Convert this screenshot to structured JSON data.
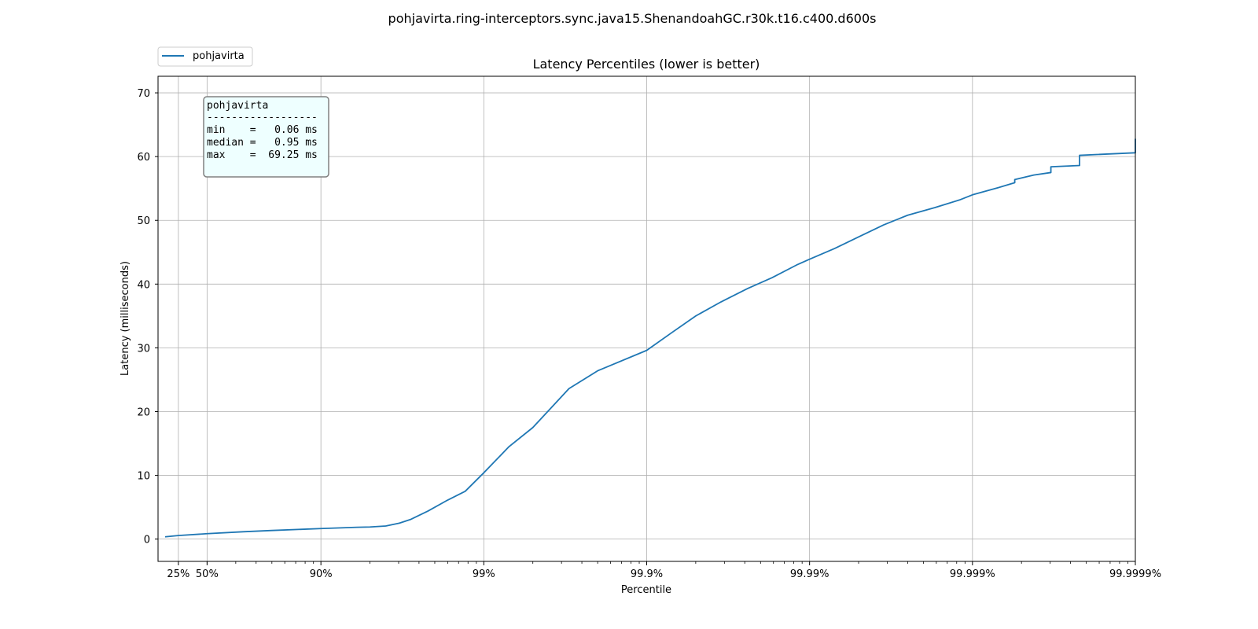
{
  "chart_data": {
    "type": "line",
    "suptitle": "pohjavirta.ring-interceptors.sync.java15.ShenandoahGC.r30k.t16.c400.d600s",
    "title": "Latency Percentiles (lower is better)",
    "xlabel": "Percentile",
    "ylabel": "Latency (milliseconds)",
    "xscale": "log of 1/(1-p)",
    "xlim_percentile": [
      0,
      99.9999
    ],
    "ylim": [
      -3.5,
      72.6
    ],
    "yticks": [
      0,
      10,
      20,
      30,
      40,
      50,
      60,
      70
    ],
    "xticks": [
      {
        "percentile": 25,
        "label": "25%"
      },
      {
        "percentile": 50,
        "label": "50%"
      },
      {
        "percentile": 90,
        "label": "90%"
      },
      {
        "percentile": 99,
        "label": "99%"
      },
      {
        "percentile": 99.9,
        "label": "99.9%"
      },
      {
        "percentile": 99.99,
        "label": "99.99%"
      },
      {
        "percentile": 99.999,
        "label": "99.999%"
      },
      {
        "percentile": 99.9999,
        "label": "99.9999%"
      }
    ],
    "grid": true,
    "legend_position": "top-left, above plot",
    "series": [
      {
        "name": "pohjavirta",
        "color": "#1f77b4",
        "points": [
          [
            9.5,
            0.35
          ],
          [
            25,
            0.55
          ],
          [
            50,
            0.85
          ],
          [
            70,
            1.15
          ],
          [
            80,
            1.35
          ],
          [
            90,
            1.65
          ],
          [
            94,
            1.85
          ],
          [
            95,
            1.9
          ],
          [
            96,
            2.05
          ],
          [
            96.7,
            2.5
          ],
          [
            97.2,
            3.1
          ],
          [
            97.8,
            4.4
          ],
          [
            98.3,
            6.0
          ],
          [
            98.7,
            7.5
          ],
          [
            99.0,
            10.4
          ],
          [
            99.3,
            14.5
          ],
          [
            99.5,
            17.5
          ],
          [
            99.7,
            23.6
          ],
          [
            99.8,
            26.4
          ],
          [
            99.9,
            29.6
          ],
          [
            99.93,
            32.4
          ],
          [
            99.95,
            35.0
          ],
          [
            99.965,
            37.2
          ],
          [
            99.976,
            39.3
          ],
          [
            99.983,
            41.0
          ],
          [
            99.988,
            43.0
          ],
          [
            99.99,
            43.9
          ],
          [
            99.993,
            45.6
          ],
          [
            99.995,
            47.4
          ],
          [
            99.9965,
            49.3
          ],
          [
            99.9975,
            50.8
          ],
          [
            99.9983,
            52.0
          ],
          [
            99.9988,
            53.2
          ],
          [
            99.999,
            54.0
          ],
          [
            99.9993,
            55.1
          ],
          [
            99.99945,
            55.9
          ],
          [
            99.99945,
            56.4
          ],
          [
            99.99958,
            57.1
          ],
          [
            99.99967,
            57.5
          ],
          [
            99.99967,
            58.4
          ],
          [
            99.99978,
            58.6
          ],
          [
            99.99978,
            60.2
          ],
          [
            99.9999,
            60.6
          ],
          [
            99.9999,
            62.8
          ]
        ]
      }
    ],
    "stats_box": {
      "title": "pohjavirta",
      "separator": "------------------",
      "lines": [
        "min    =   0.06 ms",
        "median =   0.95 ms",
        "max    =  69.25 ms"
      ]
    }
  }
}
